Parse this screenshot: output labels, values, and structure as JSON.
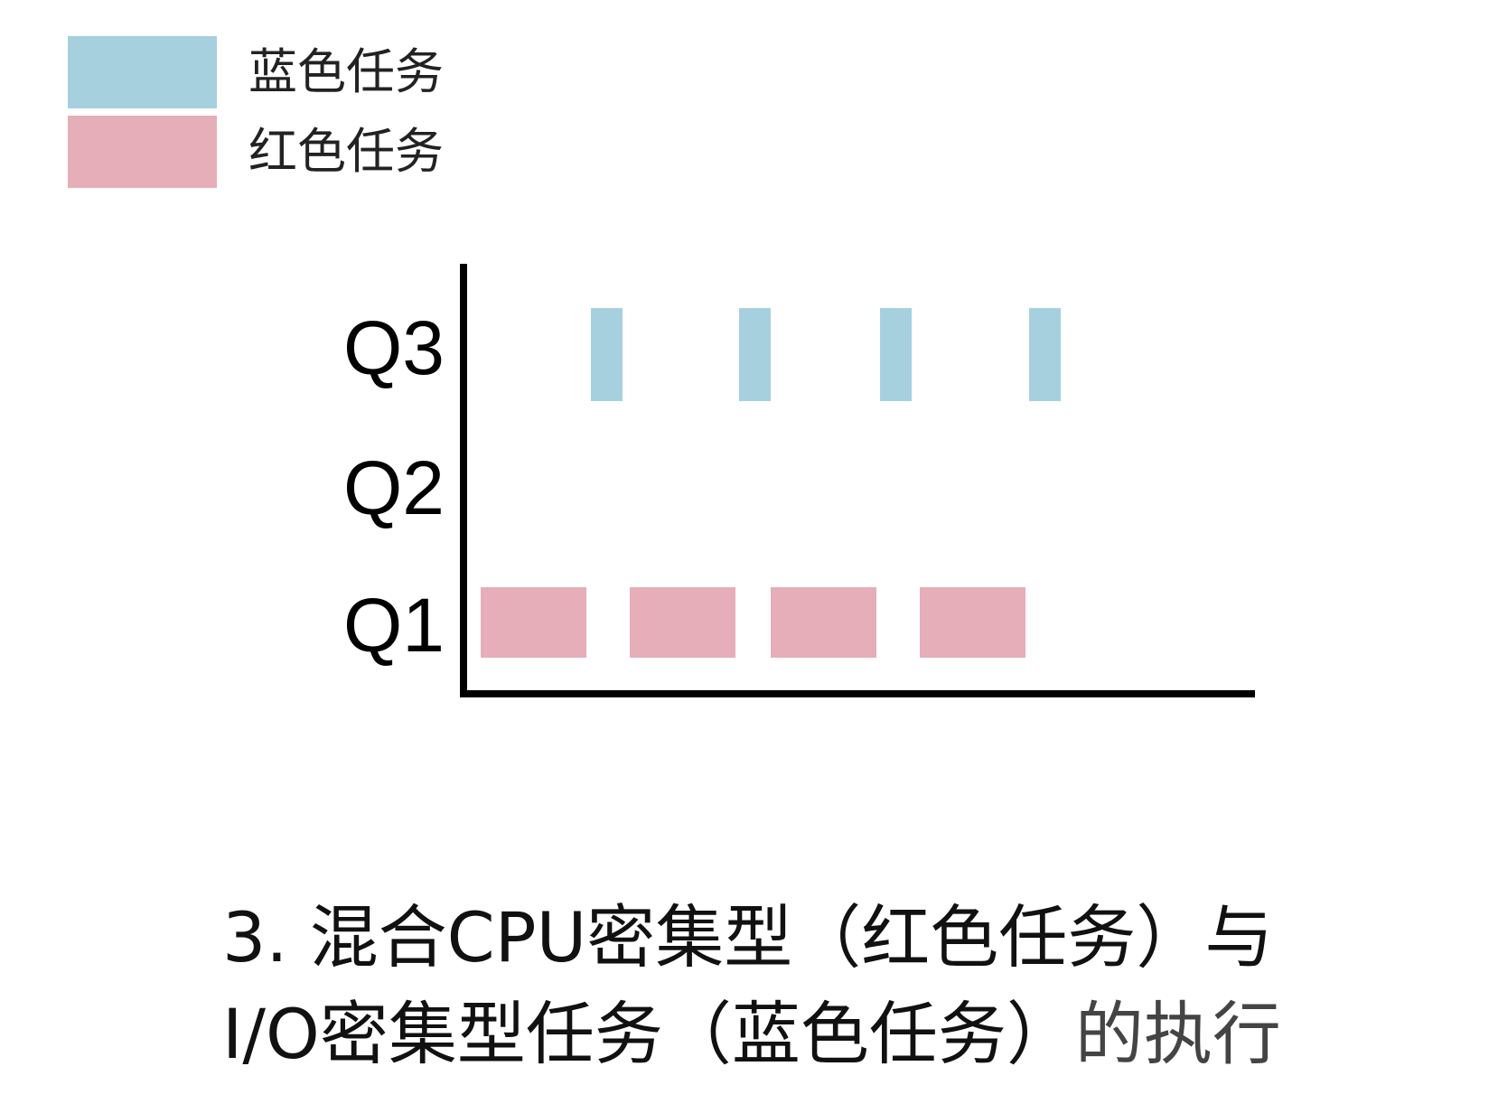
{
  "legend": {
    "blue": {
      "label": "蓝色任务",
      "color": "#a6d0de"
    },
    "red": {
      "label": "红色任务",
      "color": "#e6aeb8"
    }
  },
  "queues": [
    {
      "label": "Q3",
      "blocks": 4,
      "color": "#a6d0de"
    },
    {
      "label": "Q2",
      "blocks": 0
    },
    {
      "label": "Q1",
      "blocks": 4,
      "color": "#e6aeb8"
    }
  ],
  "caption": {
    "line1": "3. 混合CPU密集型（红色任务）与",
    "line2_main": "I/O密集型任务（蓝色任务）",
    "line2_tail": "的执行"
  }
}
